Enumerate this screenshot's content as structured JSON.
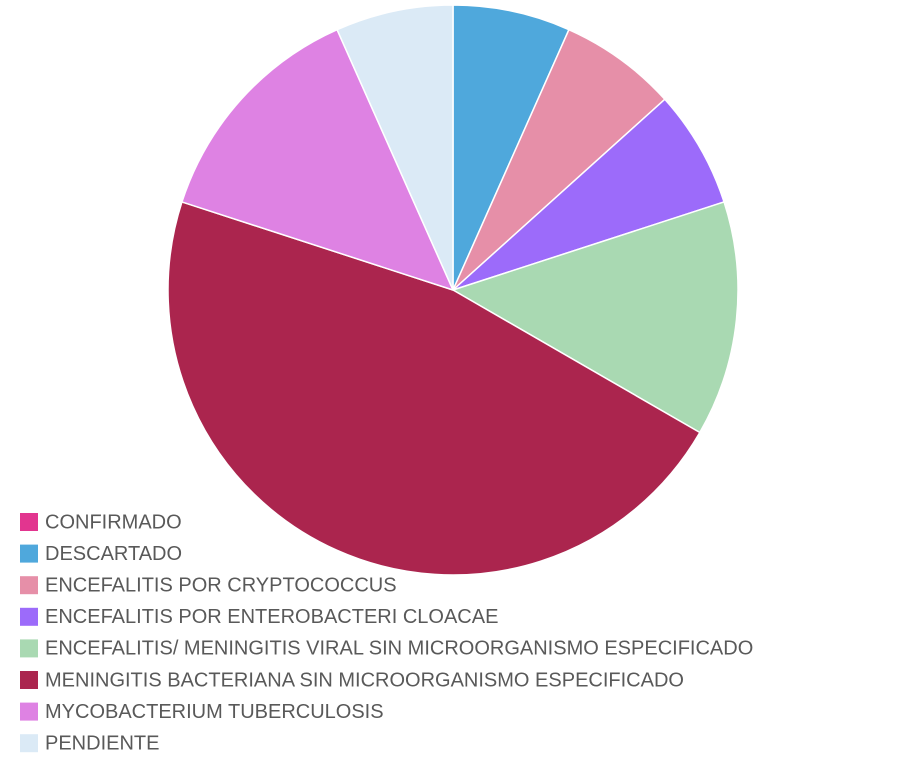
{
  "chart_data": {
    "type": "pie",
    "categories": [
      "CONFIRMADO",
      "DESCARTADO",
      "ENCEFALITIS POR CRYPTOCOCCUS",
      "ENCEFALITIS POR ENTEROBACTERI CLOACAE",
      "ENCEFALITIS/ MENINGITIS VIRAL SIN MICROORGANISMO ESPECIFICADO",
      "MENINGITIS BACTERIANA SIN MICROORGANISMO ESPECIFICADO",
      "MYCOBACTERIUM TUBERCULOSIS",
      "PENDIENTE"
    ],
    "values": [
      0,
      1,
      1,
      1,
      2,
      7,
      2,
      1
    ],
    "colors": [
      "#e2358f",
      "#4fa8dc",
      "#e68fa8",
      "#9c6bfa",
      "#a9d9b2",
      "#ab254e",
      "#de82e3",
      "#dbeaf6"
    ]
  }
}
